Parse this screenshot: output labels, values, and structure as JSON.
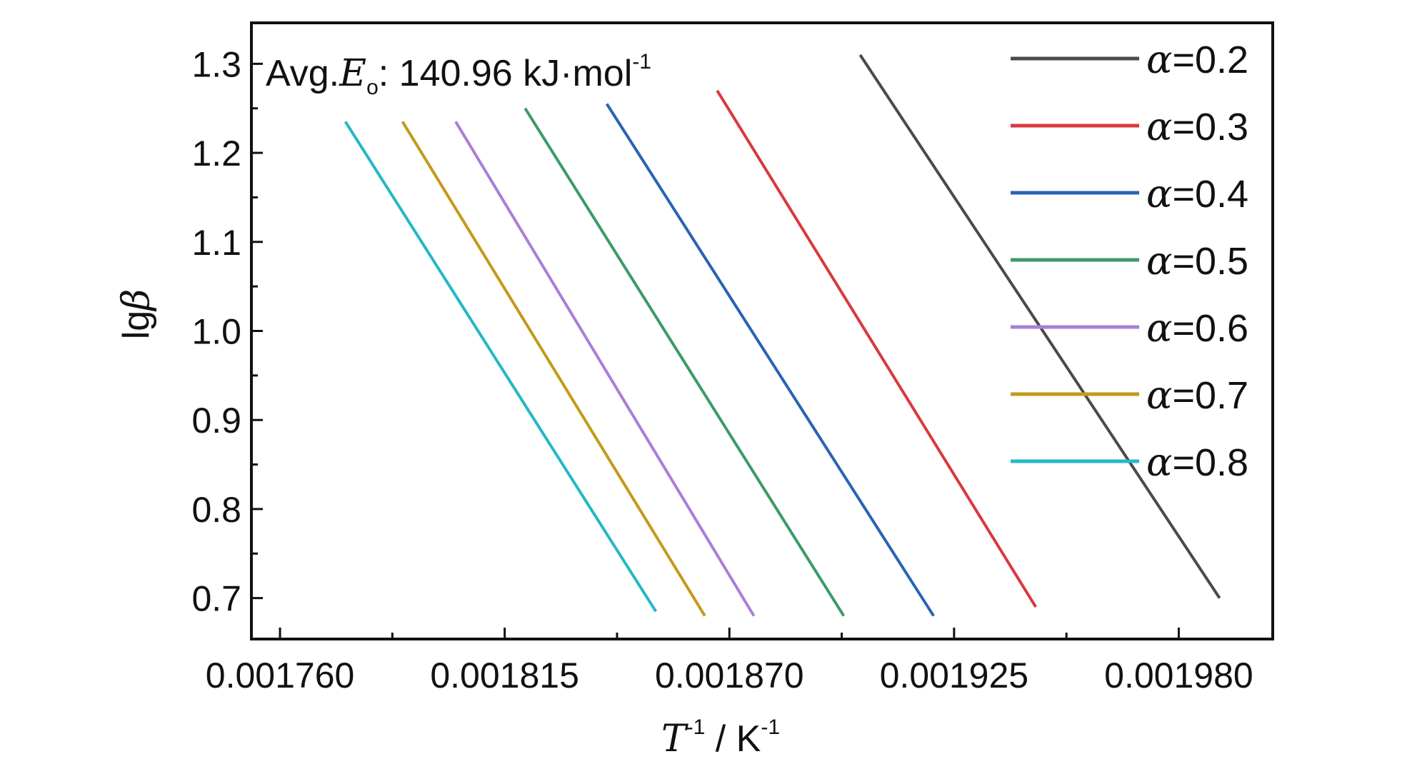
{
  "chart_data": {
    "type": "line",
    "xlabel": {
      "main": "T",
      "sup": "-1",
      "rest": " / K",
      "rest_sup": "-1"
    },
    "ylabel": {
      "prefix": "lg",
      "symbol": "β"
    },
    "annotation": {
      "prefix": "Avg.",
      "symbol": "E",
      "subscript": "o",
      "value": ": 140.96 kJ·mol",
      "value_sup": "-1"
    },
    "xlim": [
      0.001753,
      0.002003
    ],
    "ylim": [
      0.654,
      1.346
    ],
    "x_ticks": [
      0.00176,
      0.001815,
      0.00187,
      0.001925,
      0.00198
    ],
    "x_tick_labels": [
      "0.001760",
      "0.001815",
      "0.001870",
      "0.001925",
      "0.001980"
    ],
    "y_ticks": [
      0.7,
      0.8,
      0.9,
      1.0,
      1.1,
      1.2,
      1.3
    ],
    "y_tick_labels": [
      "0.7",
      "0.8",
      "0.9",
      "1.0",
      "1.1",
      "1.2",
      "1.3"
    ],
    "grid": false,
    "legend_position": "top-right",
    "series": [
      {
        "name": "0.2",
        "label_symbol": "α",
        "label_value": "=0.2",
        "color": "#4a4a4a",
        "x": [
          0.001902,
          0.00199
        ],
        "y": [
          1.31,
          0.7
        ]
      },
      {
        "name": "0.3",
        "label_symbol": "α",
        "label_value": "=0.3",
        "color": "#d9393e",
        "x": [
          0.001867,
          0.001945
        ],
        "y": [
          1.27,
          0.69
        ]
      },
      {
        "name": "0.4",
        "label_symbol": "α",
        "label_value": "=0.4",
        "color": "#2a63b5",
        "x": [
          0.00184,
          0.00192
        ],
        "y": [
          1.255,
          0.68
        ]
      },
      {
        "name": "0.5",
        "label_symbol": "α",
        "label_value": "=0.5",
        "color": "#3d9a68",
        "x": [
          0.00182,
          0.001898
        ],
        "y": [
          1.25,
          0.68
        ]
      },
      {
        "name": "0.6",
        "label_symbol": "α",
        "label_value": "=0.6",
        "color": "#a97fd6",
        "x": [
          0.001803,
          0.001876
        ],
        "y": [
          1.235,
          0.68
        ]
      },
      {
        "name": "0.7",
        "label_symbol": "α",
        "label_value": "=0.7",
        "color": "#c49a1a",
        "x": [
          0.00179,
          0.001864
        ],
        "y": [
          1.235,
          0.68
        ]
      },
      {
        "name": "0.8",
        "label_symbol": "α",
        "label_value": "=0.8",
        "color": "#25b8c6",
        "x": [
          0.001776,
          0.001852
        ],
        "y": [
          1.235,
          0.685
        ]
      }
    ]
  }
}
